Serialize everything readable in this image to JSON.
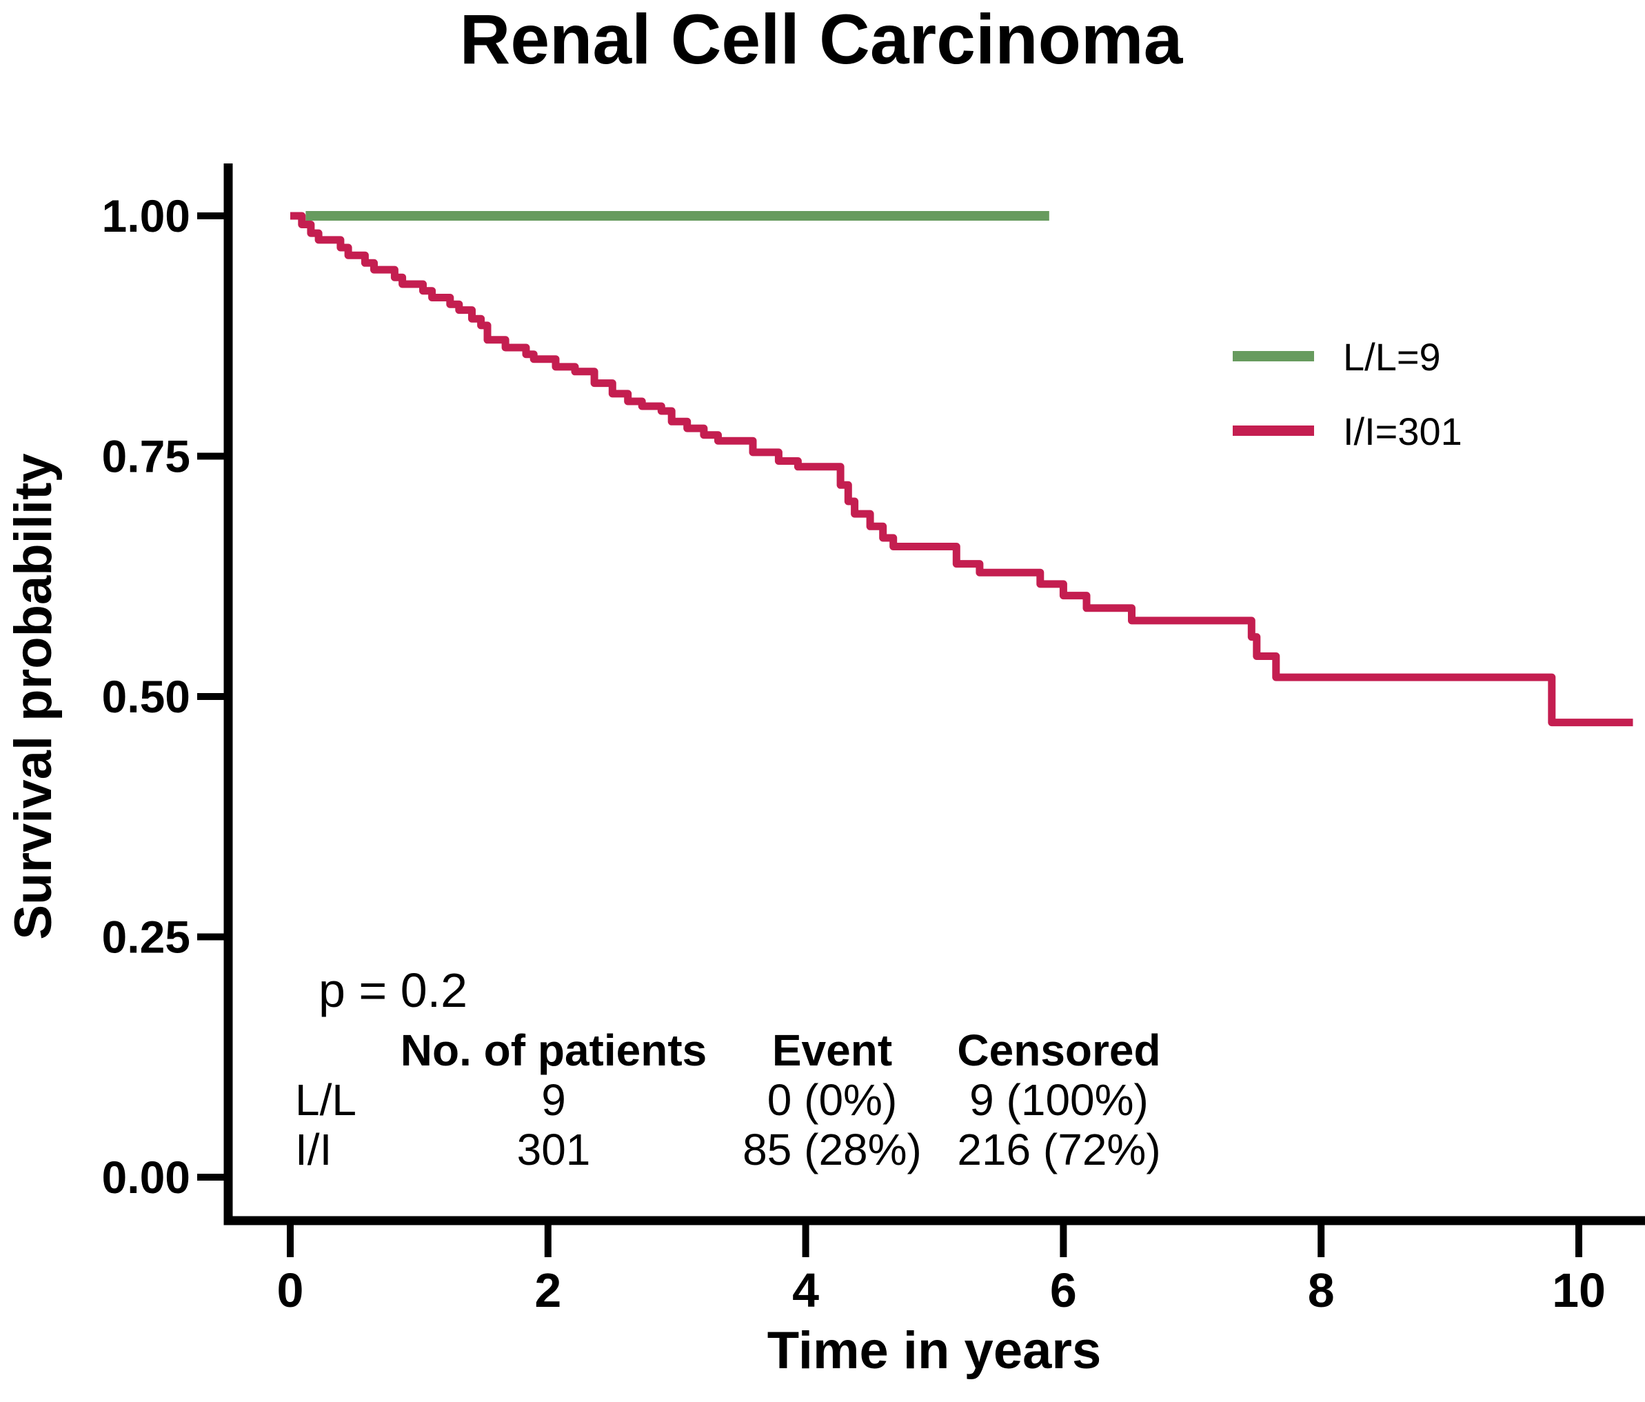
{
  "stats": {
    "p_value": "p = 0.2"
  },
  "table": {
    "col_headers": [
      "No. of patients",
      "Event",
      "Censored"
    ],
    "rows": [
      {
        "label": "L/L",
        "values": [
          "9",
          "0 (0%)",
          "9 (100%)"
        ]
      },
      {
        "label": "I/I",
        "values": [
          "301",
          "85 (28%)",
          "216 (72%)"
        ]
      }
    ]
  },
  "chart_data": {
    "type": "line",
    "subtype": "kaplan_meier_step",
    "title": "Renal Cell Carcinoma",
    "xlabel": "Time in years",
    "ylabel": "Survival probability",
    "xlim": [
      0,
      10.5
    ],
    "ylim": [
      0,
      1
    ],
    "grid": false,
    "legend_position": "upper-right-inside",
    "x_ticks": [
      {
        "value": 0,
        "label": "0"
      },
      {
        "value": 2,
        "label": "2"
      },
      {
        "value": 4,
        "label": "4"
      },
      {
        "value": 6,
        "label": "6"
      },
      {
        "value": 8,
        "label": "8"
      },
      {
        "value": 10,
        "label": "10"
      }
    ],
    "y_ticks": [
      {
        "value": 1.0,
        "label": "1.00"
      },
      {
        "value": 0.75,
        "label": "0.75"
      },
      {
        "value": 0.5,
        "label": "0.50"
      },
      {
        "value": 0.25,
        "label": "0.25"
      },
      {
        "value": 0.0,
        "label": "0.00"
      }
    ],
    "series": [
      {
        "name": "L/L=9",
        "color": "#679B5E",
        "n": 9,
        "events": "0 (0%)",
        "censored": "9 (100%)",
        "points": [
          [
            0.12,
            1.0
          ],
          [
            5.89,
            1.0
          ]
        ]
      },
      {
        "name": "I/I=301",
        "color": "#C41E50",
        "n": 301,
        "events": "85 (28%)",
        "censored": "216 (72%)",
        "points": [
          [
            0.0,
            1.0
          ],
          [
            0.09,
            0.991
          ],
          [
            0.16,
            0.982
          ],
          [
            0.22,
            0.975
          ],
          [
            0.39,
            0.967
          ],
          [
            0.45,
            0.959
          ],
          [
            0.58,
            0.951
          ],
          [
            0.65,
            0.944
          ],
          [
            0.81,
            0.936
          ],
          [
            0.87,
            0.929
          ],
          [
            1.03,
            0.922
          ],
          [
            1.1,
            0.915
          ],
          [
            1.24,
            0.908
          ],
          [
            1.31,
            0.902
          ],
          [
            1.41,
            0.893
          ],
          [
            1.48,
            0.886
          ],
          [
            1.53,
            0.871
          ],
          [
            1.67,
            0.863
          ],
          [
            1.83,
            0.856
          ],
          [
            1.89,
            0.851
          ],
          [
            2.06,
            0.843
          ],
          [
            2.21,
            0.838
          ],
          [
            2.36,
            0.826
          ],
          [
            2.5,
            0.815
          ],
          [
            2.62,
            0.807
          ],
          [
            2.73,
            0.802
          ],
          [
            2.88,
            0.797
          ],
          [
            2.96,
            0.786
          ],
          [
            3.08,
            0.779
          ],
          [
            3.21,
            0.772
          ],
          [
            3.32,
            0.766
          ],
          [
            3.59,
            0.754
          ],
          [
            3.79,
            0.745
          ],
          [
            3.94,
            0.739
          ],
          [
            4.27,
            0.72
          ],
          [
            4.33,
            0.703
          ],
          [
            4.38,
            0.69
          ],
          [
            4.5,
            0.677
          ],
          [
            4.6,
            0.665
          ],
          [
            4.68,
            0.656
          ],
          [
            5.17,
            0.638
          ],
          [
            5.35,
            0.629
          ],
          [
            5.82,
            0.617
          ],
          [
            6.0,
            0.605
          ],
          [
            6.18,
            0.592
          ],
          [
            6.53,
            0.579
          ],
          [
            7.46,
            0.562
          ],
          [
            7.5,
            0.542
          ],
          [
            7.65,
            0.52
          ],
          [
            9.79,
            0.473
          ],
          [
            10.42,
            0.473
          ]
        ]
      }
    ]
  }
}
